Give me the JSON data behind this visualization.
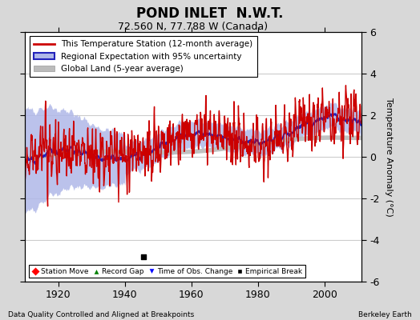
{
  "title": "POND INLET  N.W.T.",
  "subtitle": "72.560 N, 77.788 W (Canada)",
  "ylabel": "Temperature Anomaly (°C)",
  "xlim": [
    1910,
    2011
  ],
  "ylim": [
    -6,
    6
  ],
  "yticks": [
    -6,
    -4,
    -2,
    0,
    2,
    4,
    6
  ],
  "xticks": [
    1920,
    1940,
    1960,
    1980,
    2000
  ],
  "footer_left": "Data Quality Controlled and Aligned at Breakpoints",
  "footer_right": "Berkeley Earth",
  "legend_entries": [
    "This Temperature Station (12-month average)",
    "Regional Expectation with 95% uncertainty",
    "Global Land (5-year average)"
  ],
  "station_color": "#cc0000",
  "regional_color": "#2222bb",
  "regional_fill_color": "#b0b8e8",
  "global_color": "#bbbbbb",
  "background_color": "#d8d8d8",
  "plot_bg_color": "#ffffff",
  "grid_color": "#cccccc",
  "empirical_break_year": 1945.5,
  "empirical_break_value": -4.8
}
